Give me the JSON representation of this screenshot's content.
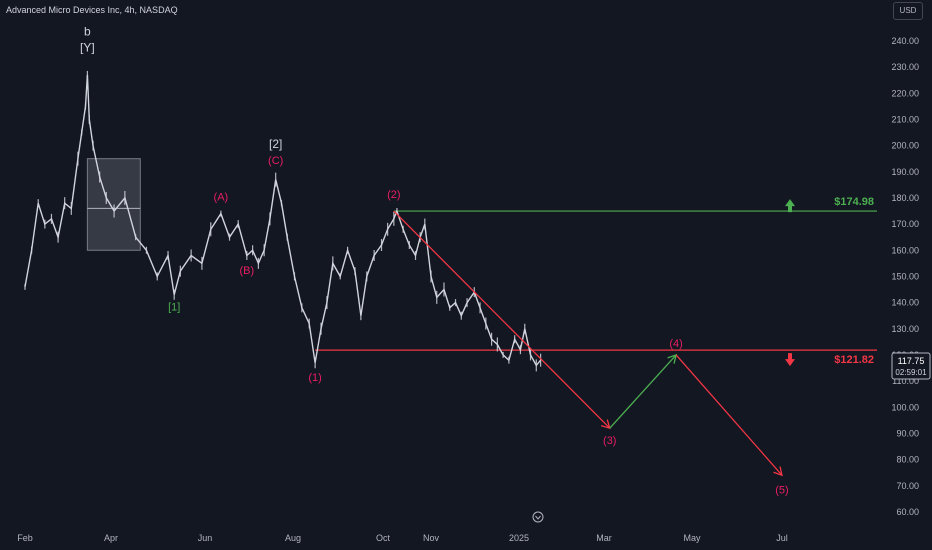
{
  "header": {
    "title": "Advanced Micro Devices Inc, 4h, NASDAQ",
    "currency": "USD"
  },
  "colors": {
    "background": "#131722",
    "price": "#d1d4dc",
    "target_up": "#4caf50",
    "target_down": "#f23645",
    "projection_up": "#4caf50",
    "projection_down": "#f23645",
    "wave_label": "#e91e63"
  },
  "chart_data": {
    "type": "line",
    "ylim": [
      55,
      248
    ],
    "y_ticks": [
      "240.00",
      "230.00",
      "220.00",
      "210.00",
      "200.00",
      "190.00",
      "180.00",
      "170.00",
      "160.00",
      "150.00",
      "140.00",
      "130.00",
      "120.00",
      "110.00",
      "100.00",
      "90.00",
      "80.00",
      "70.00",
      "60.00"
    ],
    "y_tick_values": [
      240,
      230,
      220,
      210,
      200,
      190,
      180,
      170,
      160,
      150,
      140,
      130,
      120,
      110,
      100,
      90,
      80,
      70,
      60
    ],
    "x_ticks": [
      "Feb",
      "Apr",
      "Jun",
      "Aug",
      "Oct",
      "Nov",
      "2025",
      "Mar",
      "May",
      "Jul"
    ],
    "price_series": [
      [
        "Jan 1",
        146
      ],
      [
        "Jan 8",
        160
      ],
      [
        "Jan 15",
        178
      ],
      [
        "Jan 22",
        170
      ],
      [
        "Jan 29",
        172
      ],
      [
        "Feb 5",
        165
      ],
      [
        "Feb 12",
        178
      ],
      [
        "Feb 19",
        176
      ],
      [
        "Feb 26",
        195
      ],
      [
        "Mar 1",
        205
      ],
      [
        "Mar 5",
        215
      ],
      [
        "Mar 7",
        227
      ],
      [
        "Mar 9",
        210
      ],
      [
        "Mar 13",
        200
      ],
      [
        "Mar 20",
        188
      ],
      [
        "Mar 27",
        180
      ],
      [
        "Apr 3",
        175
      ],
      [
        "Apr 10",
        180
      ],
      [
        "Apr 17",
        165
      ],
      [
        "Apr 24",
        160
      ],
      [
        "May 1",
        150
      ],
      [
        "May 8",
        158
      ],
      [
        "May 12",
        143
      ],
      [
        "May 16",
        152
      ],
      [
        "May 23",
        158
      ],
      [
        "May 30",
        155
      ],
      [
        "Jun 5",
        168
      ],
      [
        "Jun 12",
        174
      ],
      [
        "Jun 18",
        165
      ],
      [
        "Jun 24",
        170
      ],
      [
        "Jun 30",
        158
      ],
      [
        "Jul 4",
        160
      ],
      [
        "Jul 8",
        155
      ],
      [
        "Jul 12",
        160
      ],
      [
        "Jul 16",
        172
      ],
      [
        "Jul 20",
        187
      ],
      [
        "Jul 24",
        178
      ],
      [
        "Jul 28",
        165
      ],
      [
        "Aug 2",
        150
      ],
      [
        "Aug 7",
        138
      ],
      [
        "Aug 12",
        132
      ],
      [
        "Aug 16",
        117
      ],
      [
        "Aug 20",
        130
      ],
      [
        "Aug 24",
        140
      ],
      [
        "Aug 28",
        155
      ],
      [
        "Sep 2",
        150
      ],
      [
        "Sep 7",
        160
      ],
      [
        "Sep 12",
        152
      ],
      [
        "Sep 16",
        135
      ],
      [
        "Sep 20",
        150
      ],
      [
        "Sep 25",
        158
      ],
      [
        "Sep 30",
        162
      ],
      [
        "Oct 4",
        168
      ],
      [
        "Oct 8",
        172
      ],
      [
        "Oct 10",
        175
      ],
      [
        "Oct 14",
        168
      ],
      [
        "Oct 18",
        162
      ],
      [
        "Oct 22",
        158
      ],
      [
        "Oct 25",
        165
      ],
      [
        "Oct 28",
        170
      ],
      [
        "Nov 1",
        150
      ],
      [
        "Nov 5",
        142
      ],
      [
        "Nov 10",
        145
      ],
      [
        "Nov 14",
        138
      ],
      [
        "Nov 18",
        140
      ],
      [
        "Nov 22",
        135
      ],
      [
        "Nov 26",
        140
      ],
      [
        "Dec 1",
        144
      ],
      [
        "Dec 5",
        138
      ],
      [
        "Dec 9",
        132
      ],
      [
        "Dec 13",
        126
      ],
      [
        "Dec 17",
        124
      ],
      [
        "Dec 21",
        120
      ],
      [
        "Dec 25",
        118
      ],
      [
        "Dec 29",
        126
      ],
      [
        "Jan 2",
        122
      ],
      [
        "Jan 5",
        130
      ],
      [
        "Jan 9",
        120
      ],
      [
        "Jan 13",
        116
      ],
      [
        "Jan 16",
        118
      ]
    ],
    "box_range": {
      "from": "Mar 7",
      "to": "Apr 20",
      "high": 195,
      "low": 160,
      "mid": 176
    },
    "levels": [
      {
        "label": "$174.98",
        "value": 174.98,
        "color": "#4caf50",
        "from": "Oct 8"
      },
      {
        "label": "$121.82",
        "value": 121.82,
        "color": "#f23645",
        "from": "Aug 16"
      }
    ],
    "projection": {
      "down1": {
        "from": [
          "Oct 8",
          174.98
        ],
        "to": [
          "Mar 5",
          92
        ]
      },
      "up": {
        "from": [
          "Mar 5",
          92
        ],
        "to": [
          "Apr 20",
          120
        ]
      },
      "down2": {
        "from": [
          "Apr 20",
          120
        ],
        "to": [
          "Jul 1",
          74
        ]
      }
    },
    "current_price": {
      "value": "117.75",
      "countdown": "02:59:01"
    },
    "wave_labels": [
      {
        "text": "b",
        "x": "Mar 7",
        "y": 242,
        "style": "white"
      },
      {
        "text": "[Y]",
        "x": "Mar 7",
        "y": 236,
        "style": "white"
      },
      {
        "text": "[1]",
        "x": "May 12",
        "y": 137,
        "style": "green"
      },
      {
        "text": "(A)",
        "x": "Jun 12",
        "y": 179,
        "style": "red"
      },
      {
        "text": "(B)",
        "x": "Jun 30",
        "y": 151,
        "style": "red"
      },
      {
        "text": "[2]",
        "x": "Jul 20",
        "y": 199,
        "style": "white"
      },
      {
        "text": "(C)",
        "x": "Jul 20",
        "y": 193,
        "style": "red"
      },
      {
        "text": "(1)",
        "x": "Aug 16",
        "y": 110,
        "style": "red"
      },
      {
        "text": "(2)",
        "x": "Oct 8",
        "y": 180,
        "style": "red"
      },
      {
        "text": "(3)",
        "x": "Mar 5",
        "y": 86,
        "style": "red"
      },
      {
        "text": "(4)",
        "x": "Apr 20",
        "y": 123,
        "style": "red"
      },
      {
        "text": "(5)",
        "x": "Jul 1",
        "y": 67,
        "style": "red"
      }
    ]
  }
}
